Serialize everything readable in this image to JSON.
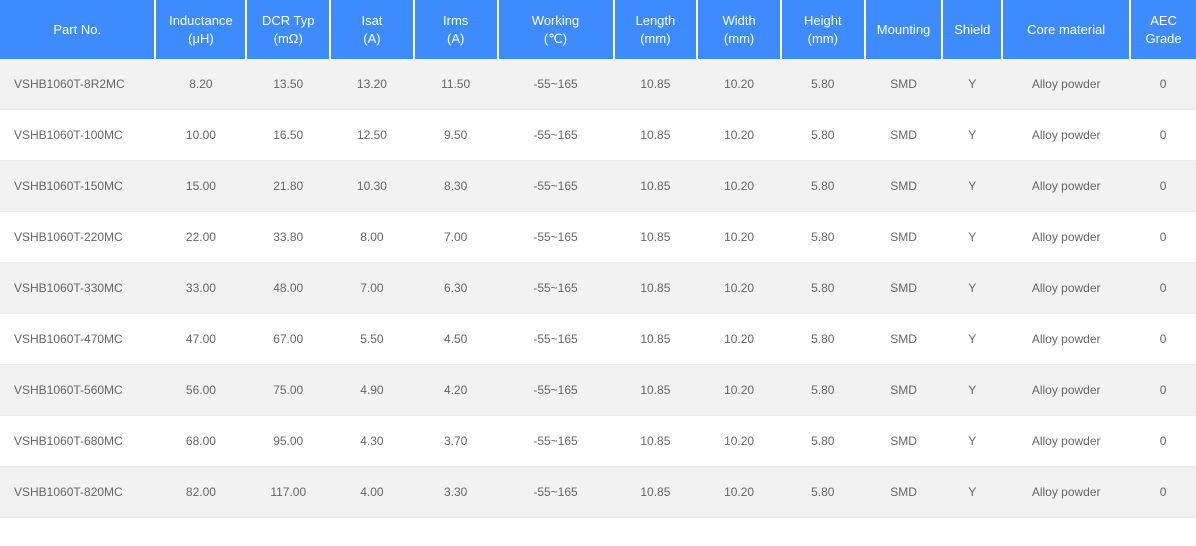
{
  "table": {
    "header_bg": "#3d8bfd",
    "header_fg": "#ffffff",
    "row_odd_bg": "#f2f2f2",
    "row_even_bg": "#ffffff",
    "border_color": "#ececec",
    "text_color": "#666666",
    "font_size_header": 13,
    "font_size_body": 12,
    "col_widths_pct": [
      13.0,
      7.6,
      7.0,
      7.0,
      7.0,
      9.7,
      7.0,
      7.0,
      7.0,
      6.5,
      5.0,
      10.7,
      5.5
    ],
    "columns": [
      {
        "line1": "Part No.",
        "line2": ""
      },
      {
        "line1": "Inductance",
        "line2": "(μH)"
      },
      {
        "line1": "DCR Typ",
        "line2": "(mΩ)"
      },
      {
        "line1": "Isat",
        "line2": "(A)"
      },
      {
        "line1": "Irms",
        "line2": "(A)"
      },
      {
        "line1": "Working",
        "line2": "(℃)"
      },
      {
        "line1": "Length",
        "line2": "(mm)"
      },
      {
        "line1": "Width",
        "line2": "(mm)"
      },
      {
        "line1": "Height",
        "line2": "(mm)"
      },
      {
        "line1": "Mounting",
        "line2": ""
      },
      {
        "line1": "Shield",
        "line2": ""
      },
      {
        "line1": "Core material",
        "line2": ""
      },
      {
        "line1": "AEC",
        "line2": "Grade"
      }
    ],
    "rows": [
      [
        "VSHB1060T-8R2MC",
        "8.20",
        "13.50",
        "13.20",
        "11.50",
        "-55~165",
        "10.85",
        "10.20",
        "5.80",
        "SMD",
        "Y",
        "Alloy powder",
        "0"
      ],
      [
        "VSHB1060T-100MC",
        "10.00",
        "16.50",
        "12.50",
        "9.50",
        "-55~165",
        "10.85",
        "10.20",
        "5.80",
        "SMD",
        "Y",
        "Alloy powder",
        "0"
      ],
      [
        "VSHB1060T-150MC",
        "15.00",
        "21.80",
        "10.30",
        "8.30",
        "-55~165",
        "10.85",
        "10.20",
        "5.80",
        "SMD",
        "Y",
        "Alloy powder",
        "0"
      ],
      [
        "VSHB1060T-220MC",
        "22.00",
        "33.80",
        "8.00",
        "7.00",
        "-55~165",
        "10.85",
        "10.20",
        "5.80",
        "SMD",
        "Y",
        "Alloy powder",
        "0"
      ],
      [
        "VSHB1060T-330MC",
        "33.00",
        "48.00",
        "7.00",
        "6.30",
        "-55~165",
        "10.85",
        "10.20",
        "5.80",
        "SMD",
        "Y",
        "Alloy powder",
        "0"
      ],
      [
        "VSHB1060T-470MC",
        "47.00",
        "67.00",
        "5.50",
        "4.50",
        "-55~165",
        "10.85",
        "10.20",
        "5.80",
        "SMD",
        "Y",
        "Alloy powder",
        "0"
      ],
      [
        "VSHB1060T-560MC",
        "56.00",
        "75.00",
        "4.90",
        "4.20",
        "-55~165",
        "10.85",
        "10.20",
        "5.80",
        "SMD",
        "Y",
        "Alloy powder",
        "0"
      ],
      [
        "VSHB1060T-680MC",
        "68.00",
        "95.00",
        "4.30",
        "3.70",
        "-55~165",
        "10.85",
        "10.20",
        "5.80",
        "SMD",
        "Y",
        "Alloy powder",
        "0"
      ],
      [
        "VSHB1060T-820MC",
        "82.00",
        "117.00",
        "4.00",
        "3.30",
        "-55~165",
        "10.85",
        "10.20",
        "5.80",
        "SMD",
        "Y",
        "Alloy powder",
        "0"
      ]
    ]
  }
}
